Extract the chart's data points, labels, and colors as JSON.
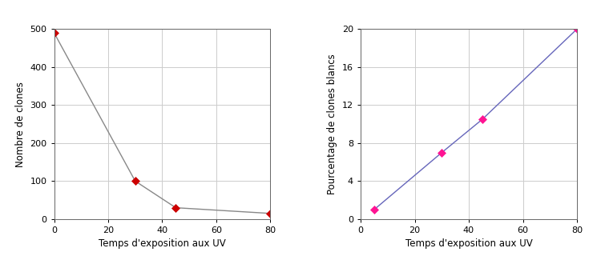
{
  "left": {
    "x": [
      0,
      30,
      45,
      80
    ],
    "y": [
      490,
      100,
      30,
      15
    ],
    "xlabel": "Temps d'exposition aux UV",
    "ylabel": "Nombre de clones",
    "xlim": [
      0,
      80
    ],
    "ylim": [
      0,
      500
    ],
    "xticks": [
      0,
      20,
      40,
      60,
      80
    ],
    "yticks": [
      0,
      100,
      200,
      300,
      400,
      500
    ],
    "line_color": "#888888",
    "marker_color": "#cc0000",
    "marker": "D",
    "markersize": 5
  },
  "right": {
    "x": [
      5,
      30,
      45,
      80
    ],
    "y": [
      1,
      7,
      10.5,
      20
    ],
    "xlabel": "Temps d'exposition aux UV",
    "ylabel": "Pourcentage de clones blancs",
    "xlim": [
      0,
      80
    ],
    "ylim": [
      0,
      20
    ],
    "xticks": [
      0,
      20,
      40,
      60,
      80
    ],
    "yticks": [
      0,
      4,
      8,
      12,
      16,
      20
    ],
    "line_color": "#6666bb",
    "marker_color": "#ff1493",
    "marker": "D",
    "markersize": 5
  },
  "bg_color": "#ffffff",
  "label_fontsize": 8.5,
  "tick_fontsize": 8
}
